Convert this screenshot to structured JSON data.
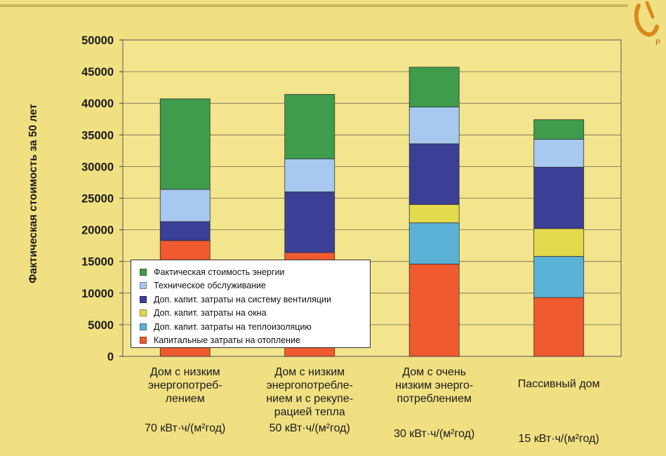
{
  "chart_data": {
    "type": "bar",
    "stacked": true,
    "ylabel": "Фактическая стоимость за 50 лет",
    "ylim": [
      0,
      50000
    ],
    "yticks": [
      "0",
      "5000",
      "10000",
      "15000",
      "20000",
      "25000",
      "30000",
      "35000",
      "40000",
      "45000",
      "50000"
    ],
    "grid": true,
    "legend_position": "bottom-left",
    "categories": [
      {
        "name": "Дом с низким энергопотреб-лением",
        "lines": [
          "Дом с низким",
          "энергопотреб-",
          "лением"
        ],
        "unit": "70 кВт·ч/(м²год)"
      },
      {
        "name": "Дом с низким энергопотребле-нием и с рекупе-рацией тепла",
        "lines": [
          "Дом с низким",
          "энергопотребле-",
          "нием и с рекупе-",
          "рацией тепла"
        ],
        "unit": "50 кВт·ч/(м²год)"
      },
      {
        "name": "Дом с очень низким энерго-потреблением",
        "lines": [
          "Дом с очень",
          "низким энерго-",
          "потреблением"
        ],
        "unit": "30 кВт·ч/(м²год)"
      },
      {
        "name": "Пассивный дом",
        "lines": [
          "Пассивный дом"
        ],
        "unit": "15 кВт·ч/(м²год)"
      }
    ],
    "series": [
      {
        "name": "Капитальные затраты на отопление",
        "color": "#ef5a2f",
        "values": [
          18300,
          16400,
          14600,
          9300
        ]
      },
      {
        "name": "Доп. капит. затраты на теплоизоляцию",
        "color": "#5ab2d6",
        "values": [
          0,
          0,
          6500,
          6500
        ]
      },
      {
        "name": "Доп. капит. затраты на окна",
        "color": "#e3d94c",
        "values": [
          0,
          0,
          2900,
          4400
        ]
      },
      {
        "name": "Доп. капит. затраты на систему вентиляции",
        "color": "#3b3f95",
        "values": [
          3000,
          9600,
          9600,
          9700
        ]
      },
      {
        "name": "Техническое обслуживание",
        "color": "#a7c8ef",
        "values": [
          5100,
          5200,
          5800,
          4400
        ]
      },
      {
        "name": "Фактическая стоимость энергии",
        "color": "#3e9c4c",
        "values": [
          14300,
          10200,
          6300,
          3100
        ]
      }
    ],
    "legend_order": [
      5,
      4,
      3,
      2,
      1,
      0
    ]
  }
}
